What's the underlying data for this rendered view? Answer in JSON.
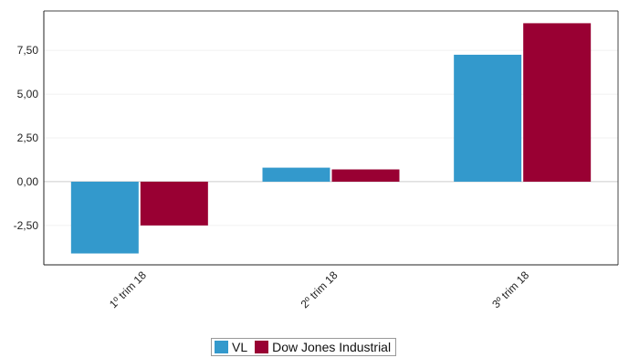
{
  "chart_data": {
    "type": "bar",
    "title": "",
    "xlabel": "",
    "ylabel": "",
    "categories": [
      "1º trim 18",
      "2º trim 18",
      "3º trim 18"
    ],
    "series": [
      {
        "name": "VL",
        "values": [
          -4.1,
          0.8,
          7.25
        ],
        "color": "#3399cc"
      },
      {
        "name": "Dow Jones Industrial",
        "values": [
          -2.5,
          0.7,
          9.05
        ],
        "color": "#990033"
      }
    ],
    "ylim": [
      -4.75,
      9.75
    ],
    "yticks": [
      -2.5,
      0,
      2.5,
      5,
      7.5
    ],
    "ytick_labels": [
      "-2,50",
      "0,00",
      "2,50",
      "5,00",
      "7,50"
    ],
    "grid": true,
    "legend_position": "bottom"
  }
}
